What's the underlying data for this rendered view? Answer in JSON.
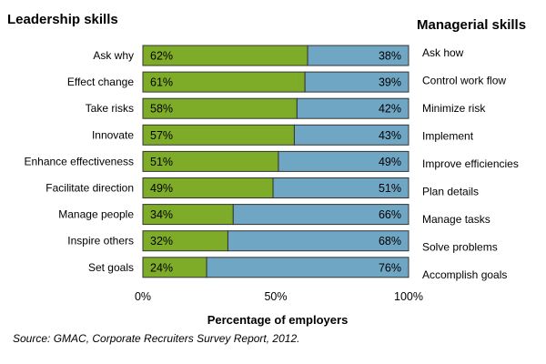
{
  "chart_data": {
    "type": "bar",
    "orientation": "horizontal",
    "stacked": true,
    "left_heading": "Leadership skills",
    "right_heading": "Managerial skills",
    "categories_left": [
      "Ask why",
      "Effect change",
      "Take risks",
      "Innovate",
      "Enhance effectiveness",
      "Facilitate direction",
      "Manage people",
      "Inspire others",
      "Set goals"
    ],
    "categories_right": [
      "Ask how",
      "Control work flow",
      "Minimize risk",
      "Implement",
      "Improve efficiencies",
      "Plan details",
      "Manage tasks",
      "Solve problems",
      "Accomplish goals"
    ],
    "series": [
      {
        "values": [
          62,
          61,
          58,
          57,
          51,
          49,
          34,
          32,
          24
        ],
        "labels": [
          "62%",
          "61%",
          "58%",
          "57%",
          "51%",
          "49%",
          "34%",
          "32%",
          "24%"
        ]
      },
      {
        "values": [
          38,
          39,
          42,
          43,
          49,
          51,
          66,
          68,
          76
        ],
        "labels": [
          "38%",
          "39%",
          "42%",
          "43%",
          "49%",
          "51%",
          "66%",
          "68%",
          "76%"
        ]
      }
    ],
    "xlabel": "Percentage of employers",
    "xlim": [
      0,
      100
    ],
    "xticks": [
      "0%",
      "50%",
      "100%"
    ],
    "source": "Source: GMAC, Corporate Recruiters Survey Report, 2012.",
    "colors": {
      "series0": "#7fac28",
      "series1": "#6fa6c4",
      "border": "#333333"
    }
  }
}
